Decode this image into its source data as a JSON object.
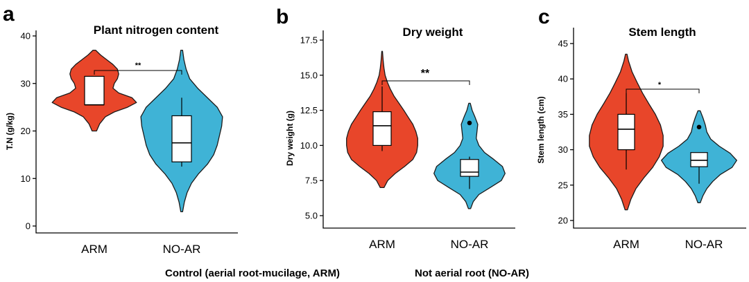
{
  "colors": {
    "ARM": "#e8462a",
    "NO-AR": "#3fb3d6"
  },
  "caption": {
    "control": "Control (aerial root-mucilage, ARM)",
    "not_aerial": "Not aerial root (NO-AR)"
  },
  "chart_data": [
    {
      "type": "violin",
      "panel": "a",
      "title": "Plant nitrogen content",
      "ylabel": "T.N (g/kg)",
      "categories": [
        "ARM",
        "NO-AR"
      ],
      "ylim": [
        0,
        40
      ],
      "yticks": [
        0,
        10,
        20,
        30,
        40
      ],
      "ytick_labels": [
        "0",
        "10",
        "20",
        "30",
        "40"
      ],
      "significance": "**",
      "groups": [
        {
          "name": "ARM",
          "box": {
            "min": 25.5,
            "q1": 25.5,
            "median": 25.5,
            "q3": 31.5,
            "max": 31.5
          },
          "outliers": [],
          "density": [
            [
              20.0,
              0.05
            ],
            [
              21.5,
              0.12
            ],
            [
              23.0,
              0.25
            ],
            [
              24.0,
              0.45
            ],
            [
              25.0,
              0.75
            ],
            [
              26.0,
              0.95
            ],
            [
              27.0,
              0.85
            ],
            [
              28.0,
              0.55
            ],
            [
              29.0,
              0.42
            ],
            [
              30.0,
              0.45
            ],
            [
              31.0,
              0.52
            ],
            [
              32.0,
              0.55
            ],
            [
              33.0,
              0.52
            ],
            [
              34.0,
              0.42
            ],
            [
              35.0,
              0.28
            ],
            [
              36.0,
              0.14
            ],
            [
              37.0,
              0.03
            ]
          ]
        },
        {
          "name": "NO-AR",
          "box": {
            "min": 12.5,
            "q1": 13.5,
            "median": 17.5,
            "q3": 23.2,
            "max": 27.0
          },
          "outliers": [],
          "density": [
            [
              3.0,
              0.02
            ],
            [
              5.0,
              0.06
            ],
            [
              7.0,
              0.12
            ],
            [
              9.0,
              0.22
            ],
            [
              11.0,
              0.38
            ],
            [
              13.0,
              0.58
            ],
            [
              15.0,
              0.72
            ],
            [
              17.0,
              0.8
            ],
            [
              19.0,
              0.85
            ],
            [
              21.0,
              0.9
            ],
            [
              23.0,
              0.92
            ],
            [
              25.0,
              0.8
            ],
            [
              27.0,
              0.58
            ],
            [
              29.0,
              0.36
            ],
            [
              31.0,
              0.18
            ],
            [
              33.0,
              0.1
            ],
            [
              35.0,
              0.05
            ],
            [
              37.0,
              0.02
            ]
          ]
        }
      ]
    },
    {
      "type": "violin",
      "panel": "b",
      "title": "Dry weight",
      "ylabel": "Dry weight (g)",
      "categories": [
        "ARM",
        "NO-AR"
      ],
      "ylim": [
        4.5,
        17.5
      ],
      "yticks": [
        5.0,
        7.5,
        10.0,
        12.5,
        15.0,
        17.5
      ],
      "ytick_labels": [
        "5.0",
        "7.5",
        "10.0",
        "12.5",
        "15.0",
        "17.5"
      ],
      "significance": "**",
      "groups": [
        {
          "name": "ARM",
          "box": {
            "min": 9.6,
            "q1": 10.0,
            "median": 11.4,
            "q3": 12.4,
            "max": 14.2
          },
          "outliers": [],
          "density": [
            [
              7.0,
              0.05
            ],
            [
              7.5,
              0.15
            ],
            [
              8.0,
              0.35
            ],
            [
              8.5,
              0.6
            ],
            [
              9.0,
              0.82
            ],
            [
              9.5,
              0.92
            ],
            [
              10.0,
              0.95
            ],
            [
              10.5,
              0.95
            ],
            [
              11.0,
              0.9
            ],
            [
              11.5,
              0.82
            ],
            [
              12.0,
              0.7
            ],
            [
              12.5,
              0.58
            ],
            [
              13.0,
              0.45
            ],
            [
              13.5,
              0.32
            ],
            [
              14.0,
              0.22
            ],
            [
              14.5,
              0.14
            ],
            [
              15.0,
              0.08
            ],
            [
              15.5,
              0.05
            ],
            [
              16.0,
              0.03
            ],
            [
              16.7,
              0.01
            ]
          ]
        },
        {
          "name": "NO-AR",
          "box": {
            "min": 6.9,
            "q1": 7.8,
            "median": 8.1,
            "q3": 9.0,
            "max": 9.2
          },
          "outliers": [
            11.6
          ],
          "density": [
            [
              5.5,
              0.03
            ],
            [
              6.0,
              0.1
            ],
            [
              6.5,
              0.25
            ],
            [
              7.0,
              0.55
            ],
            [
              7.5,
              0.85
            ],
            [
              8.0,
              0.95
            ],
            [
              8.5,
              0.88
            ],
            [
              9.0,
              0.65
            ],
            [
              9.5,
              0.4
            ],
            [
              10.0,
              0.25
            ],
            [
              10.5,
              0.18
            ],
            [
              11.0,
              0.2
            ],
            [
              11.5,
              0.22
            ],
            [
              12.0,
              0.15
            ],
            [
              12.5,
              0.07
            ],
            [
              13.0,
              0.02
            ]
          ]
        }
      ]
    },
    {
      "type": "violin",
      "panel": "c",
      "title": "Stem length",
      "ylabel": "Stem length (cm)",
      "categories": [
        "ARM",
        "NO-AR"
      ],
      "ylim": [
        19.5,
        45.5
      ],
      "yticks": [
        20,
        25,
        30,
        35,
        40,
        45
      ],
      "ytick_labels": [
        "20",
        "25",
        "30",
        "35",
        "40",
        "45"
      ],
      "significance": "*",
      "groups": [
        {
          "name": "ARM",
          "box": {
            "min": 27.2,
            "q1": 30.0,
            "median": 32.9,
            "q3": 35.0,
            "max": 38.0
          },
          "outliers": [],
          "density": [
            [
              21.5,
              0.03
            ],
            [
              23.0,
              0.12
            ],
            [
              24.5,
              0.25
            ],
            [
              26.0,
              0.45
            ],
            [
              27.5,
              0.68
            ],
            [
              29.0,
              0.85
            ],
            [
              30.5,
              0.95
            ],
            [
              32.0,
              0.95
            ],
            [
              33.5,
              0.88
            ],
            [
              35.0,
              0.75
            ],
            [
              36.5,
              0.58
            ],
            [
              38.0,
              0.42
            ],
            [
              39.5,
              0.28
            ],
            [
              41.0,
              0.15
            ],
            [
              42.5,
              0.06
            ],
            [
              43.5,
              0.02
            ]
          ]
        },
        {
          "name": "NO-AR",
          "box": {
            "min": 25.2,
            "q1": 27.6,
            "median": 28.5,
            "q3": 29.6,
            "max": 29.6
          },
          "outliers": [
            33.2
          ],
          "density": [
            [
              22.5,
              0.03
            ],
            [
              23.5,
              0.1
            ],
            [
              24.5,
              0.2
            ],
            [
              25.5,
              0.35
            ],
            [
              26.5,
              0.55
            ],
            [
              27.5,
              0.85
            ],
            [
              28.5,
              0.97
            ],
            [
              29.5,
              0.8
            ],
            [
              30.5,
              0.52
            ],
            [
              31.5,
              0.3
            ],
            [
              32.5,
              0.2
            ],
            [
              33.5,
              0.16
            ],
            [
              34.5,
              0.1
            ],
            [
              35.5,
              0.03
            ]
          ]
        }
      ]
    }
  ]
}
